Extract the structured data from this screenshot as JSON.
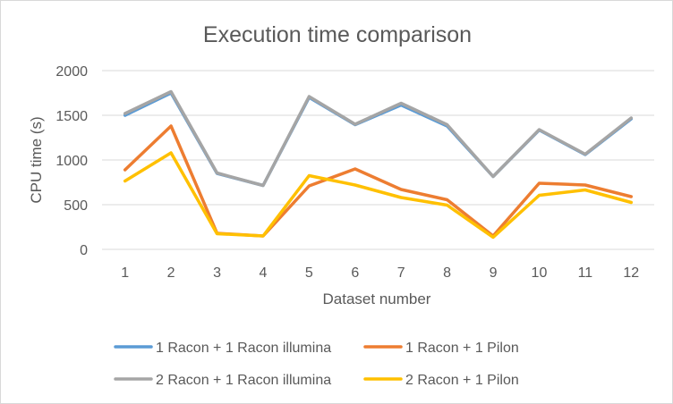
{
  "chart_data": {
    "type": "line",
    "title": "Execution time comparison",
    "xlabel": "Dataset number",
    "ylabel": "CPU time (s)",
    "categories": [
      "1",
      "2",
      "3",
      "4",
      "5",
      "6",
      "7",
      "8",
      "9",
      "10",
      "11",
      "12"
    ],
    "ylim": [
      0,
      2000
    ],
    "yticks": [
      "0",
      "500",
      "1000",
      "1500",
      "2000"
    ],
    "grid": true,
    "legend_position": "bottom",
    "series": [
      {
        "name": "1 Racon + 1 Racon illumina",
        "color": "#5B9BD5",
        "values": [
          1500,
          1750,
          850,
          715,
          1700,
          1395,
          1615,
          1380,
          815,
          1335,
          1060,
          1460
        ]
      },
      {
        "name": "1 Racon + 1 Pilon",
        "color": "#ED7D31",
        "values": [
          890,
          1380,
          180,
          150,
          710,
          900,
          670,
          555,
          150,
          740,
          720,
          590
        ]
      },
      {
        "name": "2 Racon + 1 Racon illumina",
        "color": "#A5A5A5",
        "values": [
          1520,
          1765,
          855,
          715,
          1710,
          1400,
          1635,
          1395,
          815,
          1340,
          1065,
          1470
        ]
      },
      {
        "name": "2 Racon + 1 Pilon",
        "color": "#FFC000",
        "values": [
          765,
          1080,
          175,
          150,
          825,
          720,
          580,
          495,
          135,
          605,
          665,
          525
        ]
      }
    ]
  }
}
